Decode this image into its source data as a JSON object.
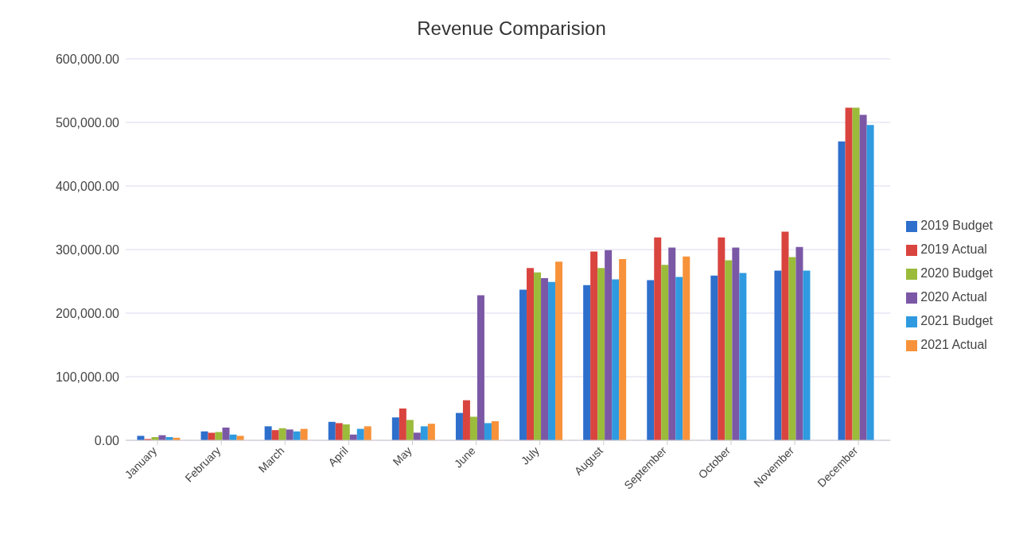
{
  "chart_data": {
    "type": "bar",
    "title": "Revenue Comparision",
    "categories": [
      "January",
      "February",
      "March",
      "April",
      "May",
      "June",
      "July",
      "August",
      "September",
      "October",
      "November",
      "December"
    ],
    "series": [
      {
        "name": "2019 Budget",
        "color": "#2e6fcc",
        "values": [
          7000,
          14000,
          22000,
          29000,
          36000,
          43000,
          237000,
          244000,
          252000,
          259000,
          267000,
          470000
        ]
      },
      {
        "name": "2019 Actual",
        "color": "#d9443f",
        "values": [
          2000,
          12000,
          16000,
          27000,
          50000,
          63000,
          271000,
          297000,
          319000,
          319000,
          328000,
          523000
        ]
      },
      {
        "name": "2020 Budget",
        "color": "#9bbb3b",
        "values": [
          5000,
          13000,
          19000,
          25000,
          32000,
          37000,
          264000,
          271000,
          276000,
          283000,
          288000,
          523000
        ]
      },
      {
        "name": "2020 Actual",
        "color": "#7b58a6",
        "values": [
          8000,
          20000,
          17000,
          9000,
          12000,
          228000,
          255000,
          299000,
          303000,
          303000,
          304000,
          512000
        ]
      },
      {
        "name": "2021 Budget",
        "color": "#2f9ae0",
        "values": [
          5000,
          9000,
          14000,
          18000,
          22000,
          27000,
          249000,
          253000,
          257000,
          263000,
          267000,
          496000
        ]
      },
      {
        "name": "2021 Actual",
        "color": "#f7923a",
        "values": [
          4000,
          7000,
          18000,
          22000,
          26000,
          30000,
          281000,
          285000,
          289000,
          null,
          null,
          null
        ]
      }
    ],
    "ylim": [
      0,
      600000
    ],
    "yticks": [
      {
        "value": 0,
        "label": "0.00"
      },
      {
        "value": 100000,
        "label": "100,000.00"
      },
      {
        "value": 200000,
        "label": "200,000.00"
      },
      {
        "value": 300000,
        "label": "300,000.00"
      },
      {
        "value": 400000,
        "label": "400,000.00"
      },
      {
        "value": 500000,
        "label": "500,000.00"
      },
      {
        "value": 600000,
        "label": "600,000.00"
      }
    ],
    "grid": "y",
    "legend": "right"
  }
}
